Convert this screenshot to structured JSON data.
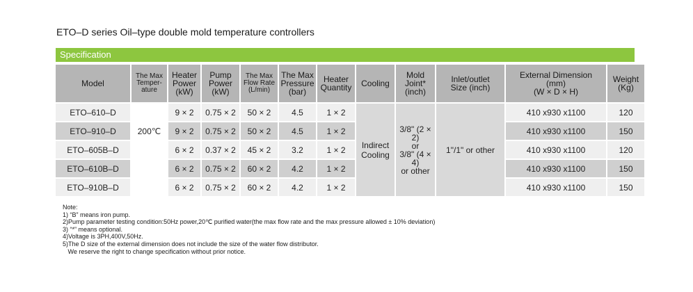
{
  "title": "ETO–D series Oil–type double mold temperature controllers",
  "spec_label": "Specification",
  "headers": [
    "Model",
    "The Max Temper- ature",
    "Heater Power (kW)",
    "Pump Power (kW)",
    "The Max Flow Rate (L/min)",
    "The Max Pressure (bar)",
    "Heater Quantity",
    "Cooling",
    "Mold Joint* (inch)",
    "Inlet/outlet Size (inch)",
    "External Dimension (mm) (W × D × H)",
    "Weight (Kg)"
  ],
  "header_lines": {
    "max_temp": [
      "The Max",
      "Temper-",
      "ature"
    ],
    "heater_power": [
      "Heater",
      "Power",
      "(kW)"
    ],
    "pump_power": [
      "Pump",
      "Power",
      "(kW)"
    ],
    "flow_rate": [
      "The Max",
      "Flow Rate",
      "(L/min)"
    ],
    "pressure": [
      "The Max",
      "Pressure",
      "(bar)"
    ],
    "heater_qty": [
      "Heater",
      "Quantity"
    ],
    "mold_joint": [
      "Mold",
      "Joint*",
      "(inch)"
    ],
    "inlet": [
      "Inlet/outlet",
      "Size (inch)"
    ],
    "dimension": [
      "External Dimension",
      "(mm)",
      "(W × D × H)"
    ],
    "weight": [
      "Weight",
      "(Kg)"
    ]
  },
  "rows": [
    {
      "model": "ETO–610–D",
      "heater_power": "9 × 2",
      "pump_power": "0.75 × 2",
      "flow_rate": "50 × 2",
      "pressure": "4.5",
      "heater_qty": "1 × 2",
      "dimension": "410 x930 x1100",
      "weight": "120"
    },
    {
      "model": "ETO–910–D",
      "heater_power": "9 × 2",
      "pump_power": "0.75 × 2",
      "flow_rate": "50 × 2",
      "pressure": "4.5",
      "heater_qty": "1 × 2",
      "dimension": "410 x930 x1100",
      "weight": "150"
    },
    {
      "model": "ETO–605B–D",
      "heater_power": "6 × 2",
      "pump_power": "0.37 × 2",
      "flow_rate": "45 × 2",
      "pressure": "3.2",
      "heater_qty": "1 × 2",
      "dimension": "410 x930 x1100",
      "weight": "120"
    },
    {
      "model": "ETO–610B–D",
      "heater_power": "6 × 2",
      "pump_power": "0.75 × 2",
      "flow_rate": "60 × 2",
      "pressure": "4.2",
      "heater_qty": "1 × 2",
      "dimension": "410 x930 x1100",
      "weight": "150"
    },
    {
      "model": "ETO–910B–D",
      "heater_power": "6 × 2",
      "pump_power": "0.75 × 2",
      "flow_rate": "60 × 2",
      "pressure": "4.2",
      "heater_qty": "1 × 2",
      "dimension": "410 x930 x1100",
      "weight": "150"
    }
  ],
  "merged": {
    "max_temp": "200℃",
    "cooling": [
      "Indirect",
      "Cooling"
    ],
    "mold_joint": [
      "3/8\" (2 × 2)",
      "or",
      "3/8\" (4 × 4)",
      "or other"
    ],
    "inlet": "1\"/1\" or other"
  },
  "notes": [
    "Note:",
    "1) “B” means iron pump.",
    "2)Pump parameter testing condition:50Hz power,20℃ purified water(the max flow rate and the max pressure allowed ± 10% deviation)",
    "3) “*” means optional.",
    "4)Voltage is 3PH,400V,50Hz.",
    "5)The D size of the external dimension does not include the size of the water flow distributor.",
    "   We reserve the right to change specification without prior notice."
  ],
  "colors": {
    "spec_bar": "#8dc63f",
    "header_bg": "#b5b5b5",
    "row_dark": "#cfcfcf",
    "row_light": "#efefef"
  }
}
